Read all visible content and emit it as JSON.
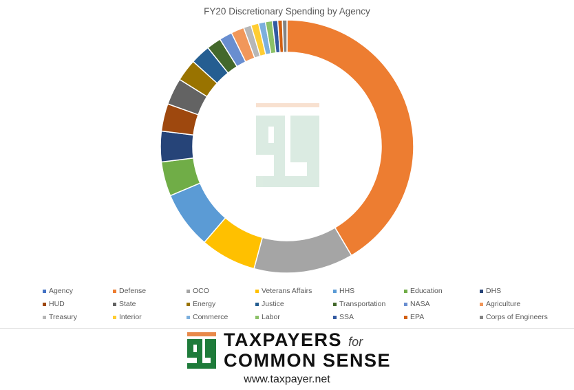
{
  "chart_data": {
    "type": "pie",
    "donut": true,
    "title": "FY20 Discretionary Spending by Agency",
    "legend_position": "bottom",
    "legend": [
      {
        "label": "Agency",
        "color": "#4472C4"
      },
      {
        "label": "Defense",
        "color": "#ED7D31"
      },
      {
        "label": "OCO",
        "color": "#A5A5A5"
      },
      {
        "label": "Veterans Affairs",
        "color": "#FFC000"
      },
      {
        "label": "HHS",
        "color": "#5B9BD5"
      },
      {
        "label": "Education",
        "color": "#70AD47"
      },
      {
        "label": "DHS",
        "color": "#264478"
      },
      {
        "label": "HUD",
        "color": "#9E480E"
      },
      {
        "label": "State",
        "color": "#636363"
      },
      {
        "label": "Energy",
        "color": "#997300"
      },
      {
        "label": "Justice",
        "color": "#255E91"
      },
      {
        "label": "Transportation",
        "color": "#43682B"
      },
      {
        "label": "NASA",
        "color": "#698ED0"
      },
      {
        "label": "Agriculture",
        "color": "#F1975A"
      },
      {
        "label": "Treasury",
        "color": "#B7B7B7"
      },
      {
        "label": "Interior",
        "color": "#FFCD33"
      },
      {
        "label": "Commerce",
        "color": "#7CAFDD"
      },
      {
        "label": "Labor",
        "color": "#8CC168"
      },
      {
        "label": "SSA",
        "color": "#335AA1"
      },
      {
        "label": "EPA",
        "color": "#D26012"
      },
      {
        "label": "Corps of Engineers",
        "color": "#848484"
      }
    ],
    "slices": [
      {
        "label": "Defense",
        "value": 42.5,
        "color": "#ED7D31"
      },
      {
        "label": "OCO",
        "value": 13.0,
        "color": "#A5A5A5"
      },
      {
        "label": "Veterans Affairs",
        "value": 7.3,
        "color": "#FFC000"
      },
      {
        "label": "HHS",
        "value": 7.5,
        "color": "#5B9BD5"
      },
      {
        "label": "Education",
        "value": 4.5,
        "color": "#70AD47"
      },
      {
        "label": "DHS",
        "value": 4.0,
        "color": "#264478"
      },
      {
        "label": "HUD",
        "value": 3.6,
        "color": "#9E480E"
      },
      {
        "label": "State",
        "value": 3.5,
        "color": "#636363"
      },
      {
        "label": "Energy",
        "value": 2.9,
        "color": "#997300"
      },
      {
        "label": "Justice",
        "value": 2.6,
        "color": "#255E91"
      },
      {
        "label": "Transportation",
        "value": 1.9,
        "color": "#43682B"
      },
      {
        "label": "NASA",
        "value": 1.7,
        "color": "#698ED0"
      },
      {
        "label": "Agriculture",
        "value": 1.7,
        "color": "#F1975A"
      },
      {
        "label": "Treasury",
        "value": 1.0,
        "color": "#B7B7B7"
      },
      {
        "label": "Interior",
        "value": 1.0,
        "color": "#FFCD33"
      },
      {
        "label": "Commerce",
        "value": 0.9,
        "color": "#7CAFDD"
      },
      {
        "label": "Labor",
        "value": 0.9,
        "color": "#8CC168"
      },
      {
        "label": "SSA",
        "value": 0.7,
        "color": "#335AA1"
      },
      {
        "label": "EPA",
        "value": 0.6,
        "color": "#D26012"
      },
      {
        "label": "Corps of Engineers",
        "value": 0.6,
        "color": "#848484"
      }
    ]
  },
  "branding": {
    "line1": "TAXPAYERS",
    "line1_suffix": "for",
    "line2": "COMMON SENSE",
    "url": "www.taxpayer.net",
    "green": "#1E7B3A",
    "orange": "#E8894A"
  }
}
